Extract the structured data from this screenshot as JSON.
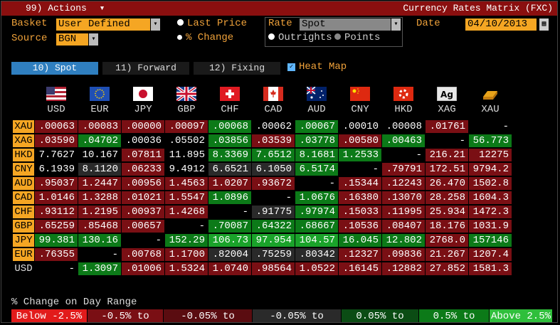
{
  "title": {
    "menu": "99) Actions",
    "menu_arrow": "▾",
    "window": "Currency Rates Matrix (FXC)"
  },
  "controls": {
    "basket_label": "Basket",
    "basket_value": "User Defined",
    "source_label": "Source",
    "source_value": "BGN",
    "last_price": "Last Price",
    "pct_change": "% Change",
    "rate_label": "Rate",
    "rate_value": "Spot",
    "outrights": "Outrights",
    "points": "Points",
    "date_label": "Date",
    "date_value": "04/10/2013"
  },
  "tabs": [
    "10) Spot",
    "11) Forward",
    "12) Fixing"
  ],
  "heat_map": "Heat Map",
  "columns": [
    "USD",
    "EUR",
    "JPY",
    "GBP",
    "CHF",
    "CAD",
    "AUD",
    "CNY",
    "HKD",
    "XAG",
    "XAU"
  ],
  "flag_icons": [
    "us-flag-icon",
    "eu-flag-icon",
    "jp-flag-icon",
    "gb-flag-icon",
    "ch-flag-icon",
    "ca-flag-icon",
    "au-flag-icon",
    "cn-flag-icon",
    "hk-flag-icon",
    "silver-icon",
    "gold-icon"
  ],
  "rows": [
    {
      "label": "XAU",
      "cells": [
        ".00063",
        ".00083",
        ".00000",
        ".00097",
        ".00068",
        ".00062",
        ".00067",
        ".00010",
        ".00008",
        ".01761",
        "-"
      ],
      "colors": [
        "#7a0f14",
        "#7a0f14",
        "#7a0f14",
        "#7a0f14",
        "#0c7a18",
        "#000",
        "#0c7a18",
        "#000",
        "#000",
        "#7a0f14",
        "#000"
      ]
    },
    {
      "label": "XAG",
      "cells": [
        ".03590",
        ".04702",
        ".00036",
        ".05502",
        ".03856",
        ".03539",
        ".03778",
        ".00580",
        ".00463",
        "-",
        "56.773"
      ],
      "colors": [
        "#7a0f14",
        "#0c7a18",
        "#000",
        "#000",
        "#0c7a18",
        "#7a0f14",
        "#0c7a18",
        "#7a0f14",
        "#0c7a18",
        "#000",
        "#0c7a18"
      ]
    },
    {
      "label": "HKD",
      "cells": [
        "7.7627",
        "10.167",
        ".07811",
        "11.895",
        "8.3369",
        "7.6512",
        "8.1681",
        "1.2533",
        "-",
        "216.21",
        "12275"
      ],
      "colors": [
        "#000",
        "#000",
        "#7a0f14",
        "#000",
        "#0c7a18",
        "#0c7a18",
        "#0c7a18",
        "#0c7a18",
        "#000",
        "#7a0f14",
        "#7a0f14"
      ]
    },
    {
      "label": "CNY",
      "cells": [
        "6.1939",
        "8.1120",
        ".06233",
        "9.4912",
        "6.6521",
        "6.1050",
        "6.5174",
        "-",
        ".79791",
        "172.51",
        "9794.2"
      ],
      "colors": [
        "#000",
        "#2a2a2a",
        "#7a0f14",
        "#000",
        "#2a2a2a",
        "#2a2a2a",
        "#0c7a18",
        "#000",
        "#7a0f14",
        "#7a0f14",
        "#7a0f14"
      ]
    },
    {
      "label": "AUD",
      "cells": [
        ".95037",
        "1.2447",
        ".00956",
        "1.4563",
        "1.0207",
        ".93672",
        "-",
        ".15344",
        ".12243",
        "26.470",
        "1502.8"
      ],
      "colors": [
        "#7a0f14",
        "#7a0f14",
        "#7a0f14",
        "#7a0f14",
        "#7a0f14",
        "#7a0f14",
        "#000",
        "#7a0f14",
        "#7a0f14",
        "#7a0f14",
        "#7a0f14"
      ]
    },
    {
      "label": "CAD",
      "cells": [
        "1.0146",
        "1.3288",
        ".01021",
        "1.5547",
        "1.0896",
        "-",
        "1.0676",
        ".16380",
        ".13070",
        "28.258",
        "1604.3"
      ],
      "colors": [
        "#7a0f14",
        "#7a0f14",
        "#7a0f14",
        "#7a0f14",
        "#0c7a18",
        "#000",
        "#0c7a18",
        "#7a0f14",
        "#7a0f14",
        "#7a0f14",
        "#7a0f14"
      ]
    },
    {
      "label": "CHF",
      "cells": [
        ".93112",
        "1.2195",
        ".00937",
        "1.4268",
        "-",
        ".91775",
        ".97974",
        ".15033",
        ".11995",
        "25.934",
        "1472.3"
      ],
      "colors": [
        "#7a0f14",
        "#7a0f14",
        "#7a0f14",
        "#7a0f14",
        "#000",
        "#2a2a2a",
        "#0c7a18",
        "#7a0f14",
        "#7a0f14",
        "#7a0f14",
        "#7a0f14"
      ]
    },
    {
      "label": "GBP",
      "cells": [
        ".65259",
        ".85468",
        ".00657",
        "-",
        ".70087",
        ".64322",
        ".68667",
        ".10536",
        ".08407",
        "18.176",
        "1031.9"
      ],
      "colors": [
        "#7a0f14",
        "#7a0f14",
        "#7a0f14",
        "#000",
        "#0c7a18",
        "#0c7a18",
        "#0c7a18",
        "#7a0f14",
        "#7a0f14",
        "#7a0f14",
        "#7a0f14"
      ]
    },
    {
      "label": "JPY",
      "cells": [
        "99.381",
        "130.16",
        "-",
        "152.29",
        "106.73",
        "97.954",
        "104.57",
        "16.045",
        "12.802",
        "2768.0",
        "157146"
      ],
      "colors": [
        "#0c7a18",
        "#0c7a18",
        "#000",
        "#0c7a18",
        "#1aa32a",
        "#1aa32a",
        "#1aa32a",
        "#0c7a18",
        "#0c7a18",
        "#7a0f14",
        "#0c7a18"
      ]
    },
    {
      "label": "EUR",
      "cells": [
        ".76355",
        "-",
        ".00768",
        "1.1700",
        ".82004",
        ".75259",
        ".80342",
        ".12327",
        ".09836",
        "21.267",
        "1207.4"
      ],
      "colors": [
        "#7a0f14",
        "#000",
        "#7a0f14",
        "#7a0f14",
        "#2a2a2a",
        "#2a2a2a",
        "#2a2a2a",
        "#7a0f14",
        "#7a0f14",
        "#7a0f14",
        "#7a0f14"
      ]
    },
    {
      "label": "USD",
      "cells": [
        "-",
        "1.3097",
        ".01006",
        "1.5324",
        "1.0740",
        ".98564",
        "1.0522",
        ".16145",
        ".12882",
        "27.852",
        "1581.3"
      ],
      "colors": [
        "#000",
        "#0c7a18",
        "#7a0f14",
        "#7a0f14",
        "#7a0f14",
        "#7a0f14",
        "#7a0f14",
        "#7a0f14",
        "#7a0f14",
        "#7a0f14",
        "#7a0f14"
      ]
    }
  ],
  "legend": {
    "title": "% Change on Day Range",
    "items": [
      {
        "label": "Below -2.5%",
        "color": "#e21b1b"
      },
      {
        "label": "-0.5% to -2.5%",
        "color": "#7a0f14"
      },
      {
        "label": "-0.05% to -0.5%",
        "color": "#5a0c10"
      },
      {
        "label": "-0.05% to 0.05%",
        "color": "#2a2a2a"
      },
      {
        "label": "0.05% to 0.5%",
        "color": "#0b4c14"
      },
      {
        "label": "0.5% to 2.5%",
        "color": "#0c7a18"
      },
      {
        "label": "Above 2.5%",
        "color": "#2fbf3b"
      }
    ]
  }
}
